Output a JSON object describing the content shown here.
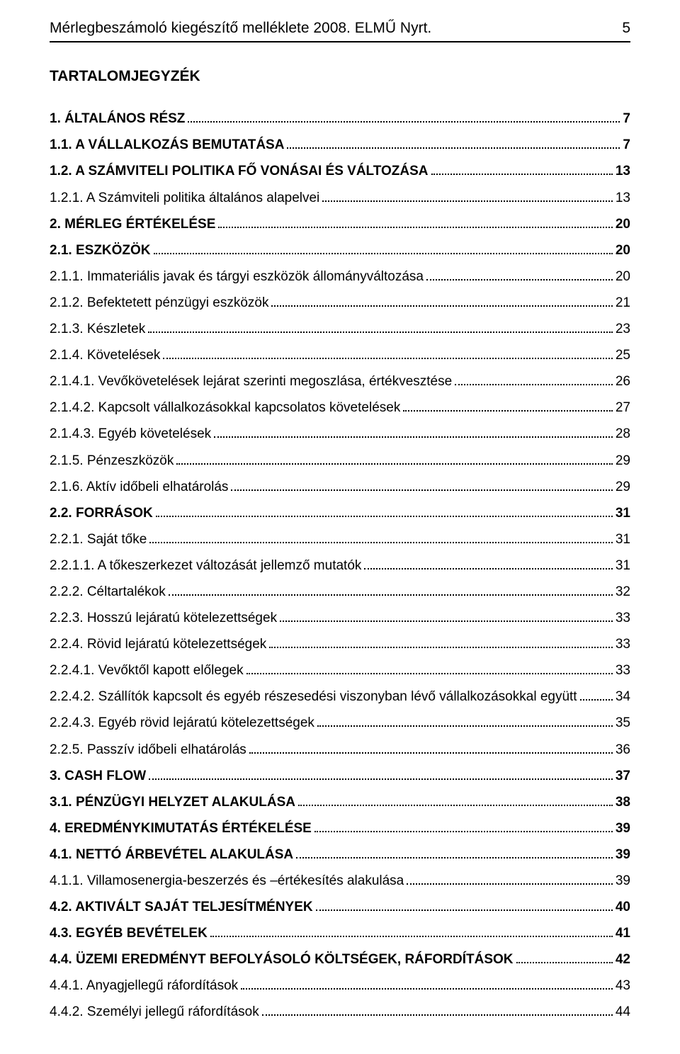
{
  "header": {
    "title": "Mérlegbeszámoló kiegészítő melléklete 2008. ELMŰ Nyrt.",
    "page_number": "5"
  },
  "toc": {
    "title": "TARTALOMJEGYZÉK",
    "entries": [
      {
        "label": "1. ÁLTALÁNOS RÉSZ",
        "page": "7",
        "bold": true
      },
      {
        "label": "1.1. A VÁLLALKOZÁS BEMUTATÁSA",
        "page": "7",
        "bold": true
      },
      {
        "label": "1.2. A SZÁMVITELI POLITIKA FŐ VONÁSAI ÉS VÁLTOZÁSA",
        "page": "13",
        "bold": true
      },
      {
        "label": "1.2.1. A Számviteli politika általános alapelvei",
        "page": "13",
        "bold": false
      },
      {
        "label": "2. MÉRLEG ÉRTÉKELÉSE",
        "page": "20",
        "bold": true
      },
      {
        "label": "2.1. ESZKÖZÖK",
        "page": "20",
        "bold": true
      },
      {
        "label": "2.1.1. Immateriális javak és tárgyi eszközök állományváltozása",
        "page": "20",
        "bold": false
      },
      {
        "label": "2.1.2. Befektetett pénzügyi eszközök",
        "page": "21",
        "bold": false
      },
      {
        "label": "2.1.3. Készletek",
        "page": "23",
        "bold": false
      },
      {
        "label": "2.1.4. Követelések",
        "page": "25",
        "bold": false
      },
      {
        "label": "2.1.4.1. Vevőkövetelések lejárat szerinti megoszlása, értékvesztése",
        "page": "26",
        "bold": false
      },
      {
        "label": "2.1.4.2. Kapcsolt vállalkozásokkal kapcsolatos követelések",
        "page": "27",
        "bold": false
      },
      {
        "label": "2.1.4.3. Egyéb követelések",
        "page": "28",
        "bold": false
      },
      {
        "label": "2.1.5. Pénzeszközök",
        "page": "29",
        "bold": false
      },
      {
        "label": "2.1.6. Aktív időbeli elhatárolás",
        "page": "29",
        "bold": false
      },
      {
        "label": "2.2. FORRÁSOK",
        "page": "31",
        "bold": true
      },
      {
        "label": "2.2.1. Saját tőke",
        "page": "31",
        "bold": false
      },
      {
        "label": "2.2.1.1. A tőkeszerkezet változását jellemző mutatók",
        "page": "31",
        "bold": false
      },
      {
        "label": "2.2.2. Céltartalékok",
        "page": "32",
        "bold": false
      },
      {
        "label": "2.2.3. Hosszú lejáratú kötelezettségek",
        "page": "33",
        "bold": false
      },
      {
        "label": "2.2.4. Rövid lejáratú kötelezettségek",
        "page": "33",
        "bold": false
      },
      {
        "label": "2.2.4.1. Vevőktől kapott előlegek",
        "page": "33",
        "bold": false
      },
      {
        "label": "2.2.4.2. Szállítók kapcsolt és egyéb részesedési viszonyban lévő vállalkozásokkal együtt",
        "page": "34",
        "bold": false
      },
      {
        "label": "2.2.4.3. Egyéb rövid lejáratú kötelezettségek",
        "page": "35",
        "bold": false
      },
      {
        "label": "2.2.5. Passzív időbeli elhatárolás",
        "page": "36",
        "bold": false
      },
      {
        "label": "3. CASH FLOW",
        "page": "37",
        "bold": true
      },
      {
        "label": "3.1. PÉNZÜGYI HELYZET ALAKULÁSA",
        "page": "38",
        "bold": true
      },
      {
        "label": "4. EREDMÉNYKIMUTATÁS ÉRTÉKELÉSE",
        "page": "39",
        "bold": true
      },
      {
        "label": "4.1. NETTÓ ÁRBEVÉTEL ALAKULÁSA",
        "page": "39",
        "bold": true
      },
      {
        "label": "4.1.1. Villamosenergia-beszerzés és –értékesítés alakulása",
        "page": "39",
        "bold": false
      },
      {
        "label": "4.2. AKTIVÁLT SAJÁT TELJESÍTMÉNYEK",
        "page": "40",
        "bold": true
      },
      {
        "label": "4.3. EGYÉB BEVÉTELEK",
        "page": "41",
        "bold": true
      },
      {
        "label": "4.4. ÜZEMI EREDMÉNYT BEFOLYÁSOLÓ KÖLTSÉGEK, RÁFORDÍTÁSOK",
        "page": "42",
        "bold": true
      },
      {
        "label": "4.4.1. Anyagjellegű ráfordítások",
        "page": "43",
        "bold": false
      },
      {
        "label": "4.4.2. Személyi jellegű ráfordítások",
        "page": "44",
        "bold": false
      }
    ]
  }
}
